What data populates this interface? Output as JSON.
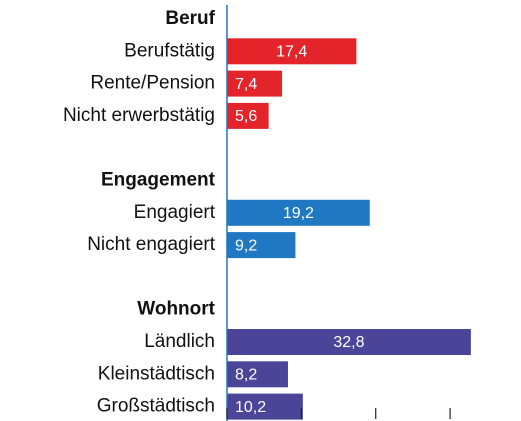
{
  "chart_data": {
    "type": "bar",
    "orientation": "horizontal",
    "groups": [
      {
        "name": "Beruf",
        "color": "#e3242b",
        "categories": [
          "Berufstätig",
          "Rente/Pension",
          "Nicht erwerbstätig"
        ],
        "values": [
          17.4,
          7.4,
          5.6
        ],
        "value_labels": [
          "17,4",
          "7,4",
          "5,6"
        ]
      },
      {
        "name": "Engagement",
        "color": "#1f78c1",
        "categories": [
          "Engagiert",
          "Nicht engagiert"
        ],
        "values": [
          19.2,
          9.2
        ],
        "value_labels": [
          "19,2",
          "9,2"
        ]
      },
      {
        "name": "Wohnort",
        "color": "#4a4598",
        "categories": [
          "Ländlich",
          "Kleinstädtisch",
          "Großstädtisch"
        ],
        "values": [
          32.8,
          8.2,
          10.2
        ],
        "value_labels": [
          "32,8",
          "8,2",
          "10,2"
        ]
      }
    ],
    "xlim": [
      0,
      39
    ],
    "xticks": [
      0,
      10,
      20,
      30
    ]
  }
}
